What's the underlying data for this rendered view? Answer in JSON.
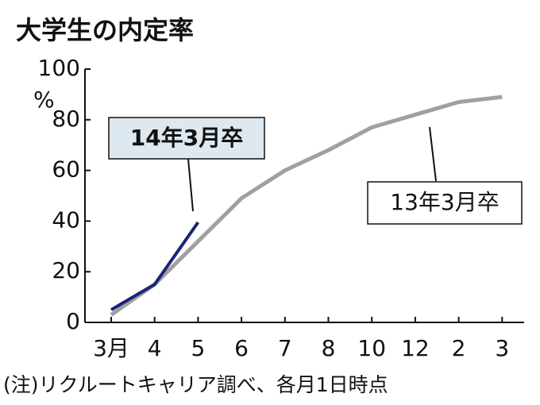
{
  "chart_data": {
    "type": "line",
    "title": "大学生の内定率",
    "ylabel": "%",
    "note": "(注)リクルートキャリア調べ、各月1日時点",
    "categories": [
      "3月",
      "4",
      "5",
      "6",
      "7",
      "8",
      "10",
      "12",
      "2",
      "3"
    ],
    "series": [
      {
        "name": "13年3月卒",
        "color": "#a0a0a0",
        "values": [
          3,
          15,
          32,
          49,
          60,
          68,
          77,
          82,
          87,
          89
        ]
      },
      {
        "name": "14年3月卒",
        "color": "#1a2478",
        "values": [
          5,
          15,
          39.5,
          null,
          null,
          null,
          null,
          null,
          null,
          null
        ]
      }
    ],
    "ylim": [
      0,
      100
    ],
    "yticks": [
      0,
      20,
      40,
      60,
      80,
      100
    ]
  }
}
